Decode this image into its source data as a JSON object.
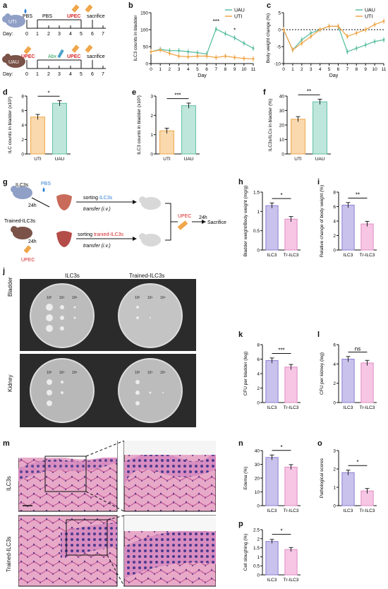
{
  "panels": {
    "a": "a",
    "b": "b",
    "c": "c",
    "d": "d",
    "e": "e",
    "f": "f",
    "g": "g",
    "h": "h",
    "i": "i",
    "j": "j",
    "k": "k",
    "l": "l",
    "m": "m",
    "n": "n",
    "o": "o",
    "p": "p"
  },
  "colors": {
    "uti": "#f0a64a",
    "uau": "#5dbfa3",
    "uti_fill": "#f9d9ad",
    "uau_fill": "#bfe6da",
    "ilc3": "#c8c2ec",
    "trilc3": "#f6c6e4",
    "pbs_blue": "#2f7fd4",
    "upec_red": "#d62728",
    "mouse_blue": "#8f9fc6",
    "mouse_brown": "#7a5248"
  },
  "panel_a": {
    "uti_label": "UTI",
    "uau_label": "UAU",
    "day_label": "Day:",
    "days": [
      "0",
      "1",
      "2",
      "3",
      "4",
      "5",
      "6",
      "7"
    ],
    "uti_pbs0": "PBS",
    "uti_pbs": "PBS",
    "uti_upec": "UPEC",
    "uti_sac": "sacrifice",
    "uau_upec0": "UPEC",
    "uau_abx": "Abx",
    "uau_upec": "UPEC",
    "uau_sac": "sacrifice"
  },
  "chart_data": [
    {
      "id": "b",
      "type": "line",
      "ylabel": "ILC3 counts in bladder",
      "xlabel": "Day",
      "x": [
        0,
        1,
        2,
        3,
        4,
        5,
        6,
        7,
        8,
        9,
        10,
        11
      ],
      "xlim": [
        0,
        11
      ],
      "ylim": [
        0,
        150
      ],
      "yticks": [
        0,
        50,
        100,
        150
      ],
      "series": [
        {
          "name": "UAU",
          "values": [
            35,
            42,
            38,
            38,
            35,
            32,
            28,
            102,
            88,
            76,
            60,
            45
          ]
        },
        {
          "name": "UTI",
          "values": [
            35,
            40,
            30,
            22,
            20,
            22,
            22,
            18,
            22,
            18,
            15,
            14
          ]
        }
      ],
      "annotations": [
        {
          "day": 7,
          "text": "***"
        },
        {
          "day": 9,
          "text": "*"
        }
      ],
      "legend": "top-right"
    },
    {
      "id": "c",
      "type": "line",
      "ylabel": "Body weight change (%)",
      "xlabel": "Day",
      "x": [
        0,
        1,
        2,
        3,
        4,
        5,
        6,
        7,
        8,
        9,
        10,
        11
      ],
      "xlim": [
        0,
        11
      ],
      "ylim": [
        -10,
        5
      ],
      "yticks": [
        -10,
        -5,
        0,
        5
      ],
      "series": [
        {
          "name": "UAU",
          "values": [
            0,
            -6,
            -3,
            -1,
            0,
            1,
            1,
            -6.5,
            -5.5,
            -4.5,
            -3.5,
            -3
          ]
        },
        {
          "name": "UTI",
          "values": [
            0,
            -6,
            -4,
            -2,
            0,
            1,
            1,
            -2,
            -1,
            0,
            1.5,
            2.5
          ]
        }
      ],
      "legend": "top-right"
    },
    {
      "id": "d",
      "type": "bar",
      "ylabel": "ILC counts in bladder (x10²)",
      "categories": [
        "UTI",
        "UAU"
      ],
      "values": [
        5.1,
        7.0
      ],
      "ylim": [
        0,
        8
      ],
      "yticks": [
        0,
        2,
        4,
        6,
        8
      ],
      "significance": "*"
    },
    {
      "id": "e",
      "type": "bar",
      "ylabel": "ILC3 counts in bladder (x10²)",
      "categories": [
        "UTI",
        "UAU"
      ],
      "values": [
        1.2,
        2.5
      ],
      "ylim": [
        0,
        3
      ],
      "yticks": [
        0,
        1,
        2,
        3
      ],
      "significance": "***"
    },
    {
      "id": "f",
      "type": "bar",
      "ylabel": "ILC3s/ILCs in bladder (%)",
      "categories": [
        "UTI",
        "UAU"
      ],
      "values": [
        24,
        36
      ],
      "ylim": [
        0,
        40
      ],
      "yticks": [
        0,
        10,
        20,
        30,
        40
      ],
      "significance": "**"
    },
    {
      "id": "h",
      "type": "bar",
      "ylabel": "Bladder weight/Body weight (mg/g)",
      "categories": [
        "ILC3",
        "Tr-ILC3"
      ],
      "values": [
        1.15,
        0.8
      ],
      "ylim": [
        0,
        1.5
      ],
      "yticks": [
        0.0,
        0.5,
        1.0,
        1.5
      ],
      "significance": "*"
    },
    {
      "id": "i",
      "type": "bar",
      "ylabel": "Relative change of body weight (%)",
      "categories": [
        "ILC3",
        "Tr-ILC3"
      ],
      "values": [
        6.2,
        3.6
      ],
      "ylim": [
        0,
        8
      ],
      "yticks": [
        0,
        2,
        4,
        6,
        8
      ],
      "significance": "**"
    },
    {
      "id": "k",
      "type": "bar",
      "ylabel": "CFU per bladder (log)",
      "categories": [
        "ILC3",
        "Tr-ILC3"
      ],
      "values": [
        5.8,
        4.9
      ],
      "ylim": [
        0,
        8
      ],
      "yticks": [
        0,
        2,
        4,
        6,
        8
      ],
      "significance": "***"
    },
    {
      "id": "l",
      "type": "bar",
      "ylabel": "CFU per kidney (log)",
      "categories": [
        "ILC3",
        "Tr-ILC3"
      ],
      "values": [
        4.5,
        4.1
      ],
      "ylim": [
        0,
        6
      ],
      "yticks": [
        0,
        2,
        4,
        6
      ],
      "significance": "ns"
    },
    {
      "id": "n",
      "type": "bar",
      "ylabel": "Edema (%)",
      "categories": [
        "ILC3",
        "Tr-ILC3"
      ],
      "values": [
        35,
        28
      ],
      "ylim": [
        0,
        40
      ],
      "yticks": [
        0,
        10,
        20,
        30,
        40
      ],
      "significance": "*"
    },
    {
      "id": "o",
      "type": "bar",
      "ylabel": "Pathological scores",
      "categories": [
        "ILC3",
        "Tr-ILC3"
      ],
      "values": [
        1.8,
        0.8
      ],
      "ylim": [
        0,
        3
      ],
      "yticks": [
        0,
        1,
        2,
        3
      ],
      "significance": "*"
    },
    {
      "id": "p",
      "type": "bar",
      "ylabel": "Cell sloughing (%)",
      "categories": [
        "ILC3",
        "Tr-ILC3"
      ],
      "values": [
        1.85,
        1.4
      ],
      "ylim": [
        0,
        2.5
      ],
      "yticks": [
        0.0,
        0.5,
        1.0,
        1.5,
        2.0,
        2.5
      ],
      "significance": "*"
    }
  ],
  "panel_g": {
    "ilc3s": "ILC3s",
    "trained": "Trained-ILC3s",
    "pbs": "PBS",
    "h24a": "24h",
    "h24b": "24h",
    "h24c": "24h",
    "sort1_pre": "sorting ",
    "sort1_key": "ILC3s",
    "sort2_pre": "sorting ",
    "sort2_key": "tranied-ILC3s",
    "transfer1": "transfer (i.v.)",
    "transfer2": "transfer (i.v.)",
    "upec_left": "UPEC",
    "upec_right": "UPEC",
    "sacrifice": "Sacrifice"
  },
  "panel_j": {
    "col1": "ILC3s",
    "col2": "Trained-ILC3s",
    "row1": "Bladder",
    "row2": "Kidney",
    "dil": [
      "10³",
      "10⁴",
      "10⁵"
    ]
  },
  "panel_m": {
    "row1": "ILC3s",
    "row2": "Trained-ILC3s"
  }
}
